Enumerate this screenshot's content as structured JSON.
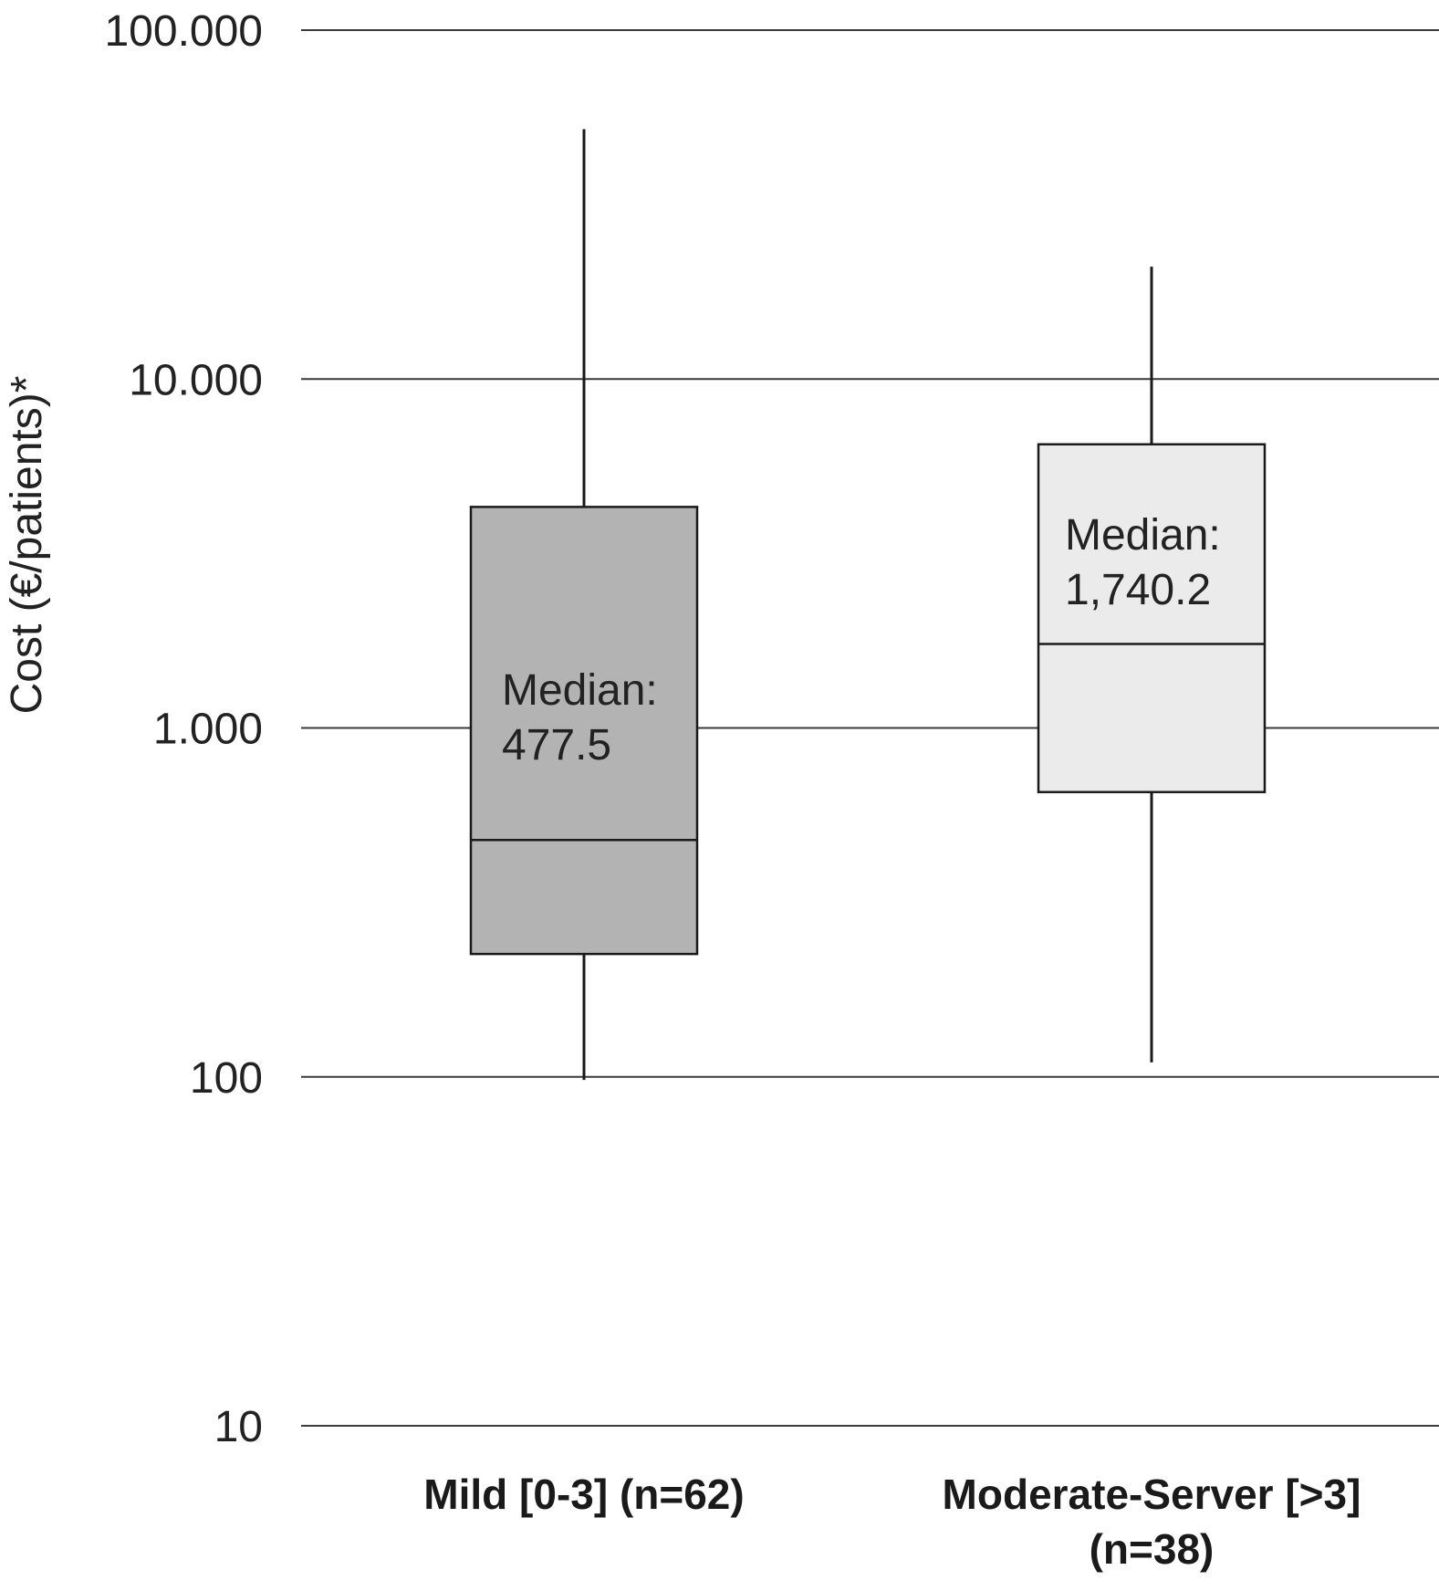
{
  "chart_data": {
    "type": "box",
    "title": "",
    "ylabel": "Cost (€/patients)*",
    "yscale": "log",
    "ylim": [
      10,
      100000
    ],
    "grid": true,
    "yticks": [
      {
        "value": 10,
        "label": "10"
      },
      {
        "value": 100,
        "label": "100"
      },
      {
        "value": 1000,
        "label": "1.000"
      },
      {
        "value": 10000,
        "label": "10.000"
      },
      {
        "value": 100000,
        "label": "100.000"
      }
    ],
    "categories": [
      {
        "label_lines": [
          "Mild [0-3] (n=62)"
        ]
      },
      {
        "label_lines": [
          "Moderate-Server [>3]",
          "(n=38)"
        ]
      }
    ],
    "boxes": [
      {
        "min": 98,
        "q1": 225,
        "median": 477.5,
        "q3": 4300,
        "max": 52000,
        "fill": "#b3b3b3",
        "median_label_lines": [
          "Median:",
          "477.5"
        ]
      },
      {
        "min": 110,
        "q1": 655,
        "median": 1740.2,
        "q3": 6500,
        "max": 21000,
        "fill": "#ebebeb",
        "median_label_lines": [
          "Median:",
          "1,740.2"
        ]
      }
    ]
  }
}
